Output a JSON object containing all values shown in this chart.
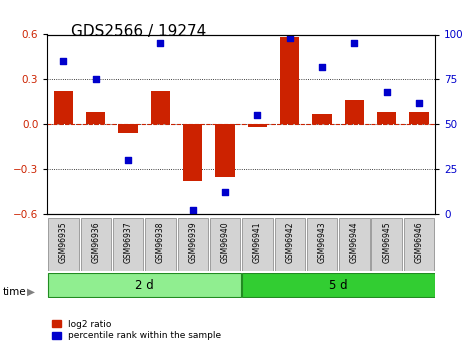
{
  "title": "GDS2566 / 19274",
  "samples": [
    "GSM96935",
    "GSM96936",
    "GSM96937",
    "GSM96938",
    "GSM96939",
    "GSM96940",
    "GSM96941",
    "GSM96942",
    "GSM96943",
    "GSM96944",
    "GSM96945",
    "GSM96946"
  ],
  "log2_ratio": [
    0.22,
    0.08,
    -0.06,
    0.22,
    -0.38,
    -0.35,
    -0.02,
    0.58,
    0.07,
    0.16,
    0.08,
    0.08
  ],
  "percentile_rank": [
    85,
    75,
    30,
    95,
    2,
    12,
    55,
    98,
    82,
    95,
    68,
    62
  ],
  "group1_label": "2 d",
  "group1_count": 6,
  "group2_label": "5 d",
  "group2_count": 6,
  "time_label": "time",
  "legend1": "log2 ratio",
  "legend2": "percentile rank within the sample",
  "bar_color": "#cc2200",
  "dot_color": "#0000cc",
  "ylim_left": [
    -0.6,
    0.6
  ],
  "ylim_right": [
    0,
    100
  ],
  "yticks_left": [
    -0.6,
    -0.3,
    0.0,
    0.3,
    0.6
  ],
  "yticks_right": [
    0,
    25,
    50,
    75,
    100
  ],
  "group1_color": "#90ee90",
  "group2_color": "#32cd32",
  "sample_bg": "#d3d3d3",
  "title_fontsize": 11,
  "tick_fontsize": 7.5,
  "label_fontsize": 8
}
